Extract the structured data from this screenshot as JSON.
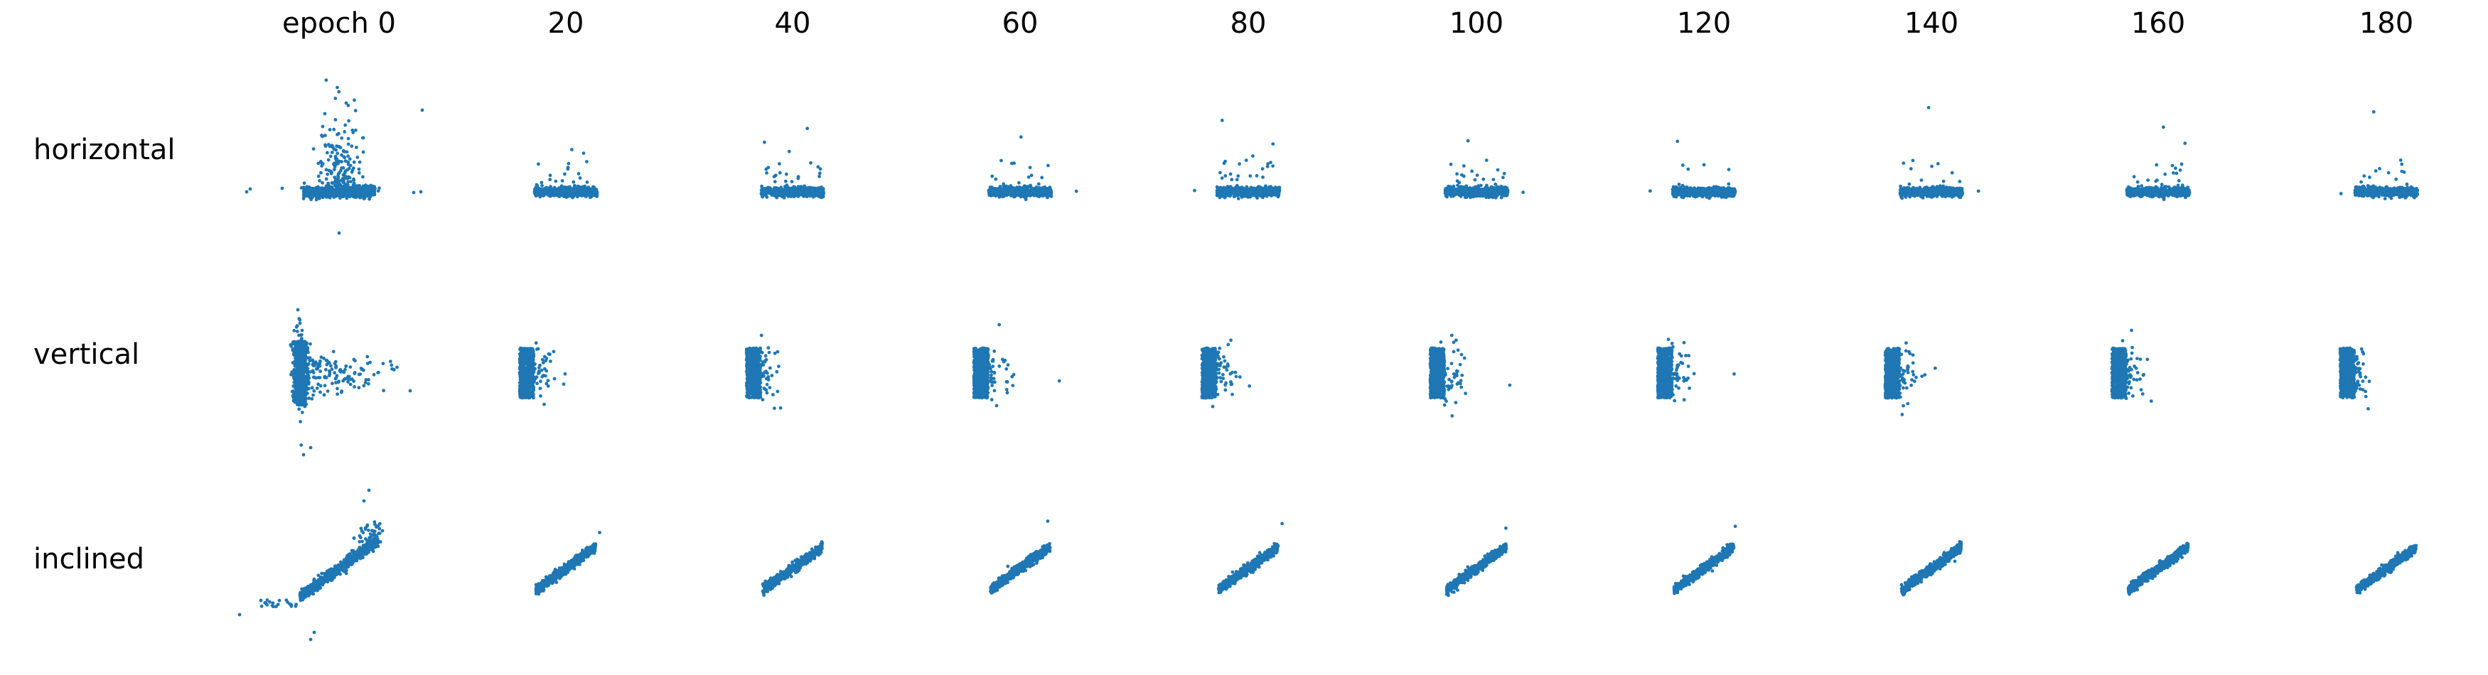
{
  "chart_data": {
    "type": "scatter",
    "layout": "small-multiples grid (3 rows x 10 columns)",
    "axes_visible": false,
    "grid": false,
    "legend": "none",
    "point_color": "#1f77b4",
    "columns": [
      "epoch 0",
      "20",
      "40",
      "60",
      "80",
      "100",
      "120",
      "140",
      "160",
      "180"
    ],
    "rows": [
      {
        "label": "horizontal"
      },
      {
        "label": "vertical"
      },
      {
        "label": "inclined"
      }
    ]
  }
}
